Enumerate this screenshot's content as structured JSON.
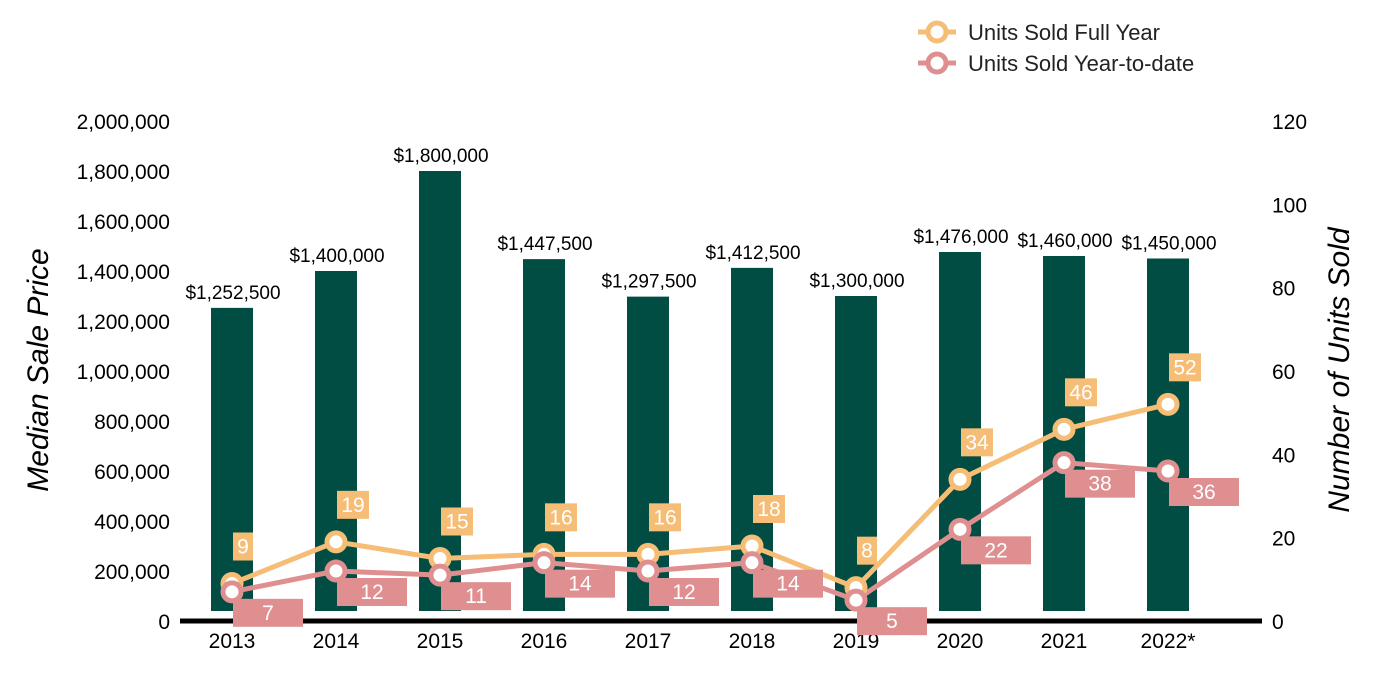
{
  "chart_data": {
    "type": "bar",
    "categories": [
      "2013",
      "2014",
      "2015",
      "2016",
      "2017",
      "2018",
      "2019",
      "2020",
      "2021",
      "2022*"
    ],
    "bar_series": {
      "name": "Median Sale Price",
      "values": [
        1252500,
        1400000,
        1800000,
        1447500,
        1297500,
        1412500,
        1300000,
        1476000,
        1460000,
        1450000
      ],
      "labels": [
        "$1,252,500",
        "$1,400,000",
        "$1,800,000",
        "$1,447,500",
        "$1,297,500",
        "$1,412,500",
        "$1,300,000",
        "$1,476,000",
        "$1,460,000",
        "$1,450,000"
      ],
      "color": "#024d43"
    },
    "line_series": [
      {
        "name": "Units Sold Full Year",
        "values": [
          9,
          19,
          15,
          16,
          16,
          18,
          8,
          34,
          46,
          52
        ],
        "color": "#f5bd75"
      },
      {
        "name": "Units Sold Year-to-date",
        "values": [
          7,
          12,
          11,
          14,
          12,
          14,
          5,
          22,
          38,
          36
        ],
        "color": "#df8f90"
      }
    ],
    "ylabel": "Median Sale Price",
    "y2label": "Number of Units Sold",
    "ylim": [
      0,
      2000000
    ],
    "y2lim": [
      0,
      120
    ],
    "yticks": [
      "0",
      "200,000",
      "400,000",
      "600,000",
      "800,000",
      "1,000,000",
      "1,200,000",
      "1,400,000",
      "1,600,000",
      "1,800,000",
      "2,000,000"
    ],
    "y2ticks": [
      "0",
      "20",
      "40",
      "60",
      "80",
      "100",
      "120"
    ],
    "legend_position": "top-right",
    "grid": false
  }
}
